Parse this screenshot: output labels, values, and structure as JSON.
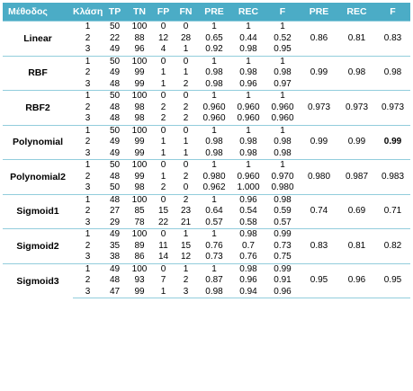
{
  "headers": [
    "Μέθοδος",
    "Κλάση",
    "TP",
    "TN",
    "FP",
    "FN",
    "PRE",
    "REC",
    "F",
    "PRE",
    "REC",
    "F"
  ],
  "groups": [
    {
      "method": "Linear",
      "rows": [
        [
          "1",
          "50",
          "100",
          "0",
          "0",
          "1",
          "1",
          "1"
        ],
        [
          "2",
          "22",
          "88",
          "12",
          "28",
          "0.65",
          "0.44",
          "0.52"
        ],
        [
          "3",
          "49",
          "96",
          "4",
          "1",
          "0.92",
          "0.98",
          "0.95"
        ]
      ],
      "avg": [
        "0.86",
        "0.81",
        "0.83"
      ]
    },
    {
      "method": "RBF",
      "rows": [
        [
          "1",
          "50",
          "100",
          "0",
          "0",
          "1",
          "1",
          "1"
        ],
        [
          "2",
          "49",
          "99",
          "1",
          "1",
          "0.98",
          "0.98",
          "0.98"
        ],
        [
          "3",
          "48",
          "99",
          "1",
          "2",
          "0.98",
          "0.96",
          "0.97"
        ]
      ],
      "avg": [
        "0.99",
        "0.98",
        "0.98"
      ]
    },
    {
      "method": "RBF2",
      "rows": [
        [
          "1",
          "50",
          "100",
          "0",
          "0",
          "1",
          "1",
          "1"
        ],
        [
          "2",
          "48",
          "98",
          "2",
          "2",
          "0.960",
          "0.960",
          "0.960"
        ],
        [
          "3",
          "48",
          "98",
          "2",
          "2",
          "0.960",
          "0.960",
          "0.960"
        ]
      ],
      "avg": [
        "0.973",
        "0.973",
        "0.973"
      ]
    },
    {
      "method": "Polynomial",
      "rows": [
        [
          "1",
          "50",
          "100",
          "0",
          "0",
          "1",
          "1",
          "1"
        ],
        [
          "2",
          "49",
          "99",
          "1",
          "1",
          "0.98",
          "0.98",
          "0.98"
        ],
        [
          "3",
          "49",
          "99",
          "1",
          "1",
          "0.98",
          "0.98",
          "0.98"
        ]
      ],
      "avg": [
        "0.99",
        "0.99",
        "0.99"
      ]
    },
    {
      "method": "Polynomial2",
      "rows": [
        [
          "1",
          "50",
          "100",
          "0",
          "0",
          "1",
          "1",
          "1"
        ],
        [
          "2",
          "48",
          "99",
          "1",
          "2",
          "0.980",
          "0.960",
          "0.970"
        ],
        [
          "3",
          "50",
          "98",
          "2",
          "0",
          "0.962",
          "1.000",
          "0.980"
        ]
      ],
      "avg": [
        "0.980",
        "0.987",
        "0.983"
      ]
    },
    {
      "method": "Sigmoid1",
      "rows": [
        [
          "1",
          "48",
          "100",
          "0",
          "2",
          "1",
          "0.96",
          "0.98"
        ],
        [
          "2",
          "27",
          "85",
          "15",
          "23",
          "0.64",
          "0.54",
          "0.59"
        ],
        [
          "3",
          "29",
          "78",
          "22",
          "21",
          "0.57",
          "0.58",
          "0.57"
        ]
      ],
      "avg": [
        "0.74",
        "0.69",
        "0.71"
      ]
    },
    {
      "method": "Sigmoid2",
      "rows": [
        [
          "1",
          "49",
          "100",
          "0",
          "1",
          "1",
          "0.98",
          "0.99"
        ],
        [
          "2",
          "35",
          "89",
          "11",
          "15",
          "0.76",
          "0.7",
          "0.73"
        ],
        [
          "3",
          "38",
          "86",
          "14",
          "12",
          "0.73",
          "0.76",
          "0.75"
        ]
      ],
      "avg": [
        "0.83",
        "0.81",
        "0.82"
      ]
    },
    {
      "method": "Sigmoid3",
      "rows": [
        [
          "1",
          "49",
          "100",
          "0",
          "1",
          "1",
          "0.98",
          "0.99"
        ],
        [
          "2",
          "48",
          "93",
          "7",
          "2",
          "0.87",
          "0.96",
          "0.91"
        ],
        [
          "3",
          "47",
          "99",
          "1",
          "3",
          "0.98",
          "0.94",
          "0.96"
        ]
      ],
      "avg": [
        "0.95",
        "0.96",
        "0.95"
      ]
    }
  ]
}
